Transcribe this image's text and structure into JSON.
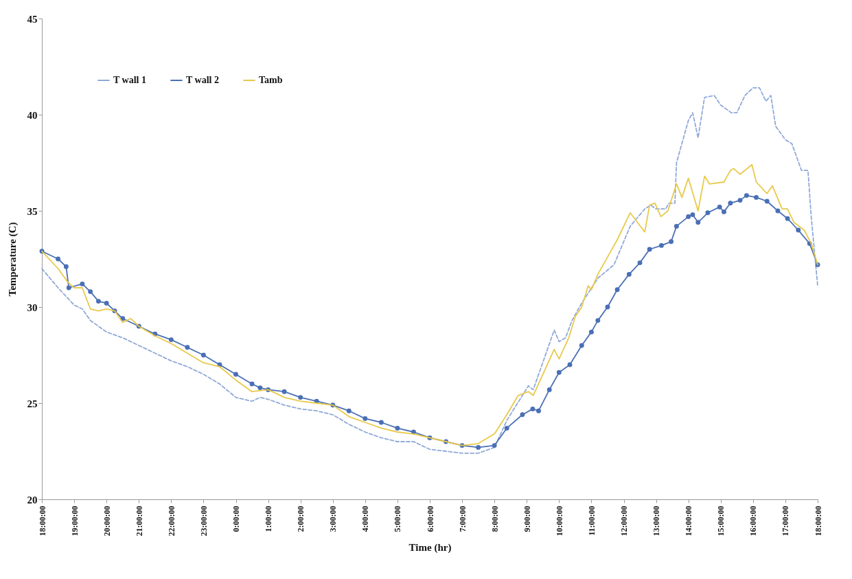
{
  "chart_data": {
    "type": "line",
    "xlabel": "Time (hr)",
    "ylabel": "Temperature (C)",
    "xlim": [
      "--01-01T18:00",
      "--01-02T18:00"
    ],
    "ylim": [
      20,
      45
    ],
    "yticks": [
      20,
      25,
      30,
      35,
      40,
      45
    ],
    "xticks": [
      {
        "value": "--01-01T18:00",
        "label": "18:00:00"
      },
      {
        "value": "--01-01T19:00",
        "label": "19:00:00"
      },
      {
        "value": "--01-01T20:00",
        "label": "20:00:00"
      },
      {
        "value": "--01-01T21:00",
        "label": "21:00:00"
      },
      {
        "value": "--01-01T22:00",
        "label": "22:00:00"
      },
      {
        "value": "--01-01T23:00",
        "label": "23:00:00"
      },
      {
        "value": "--01-02T00:00",
        "label": "0:00:00"
      },
      {
        "value": "--01-02T01:00",
        "label": "1:00:00"
      },
      {
        "value": "--01-02T02:00",
        "label": "2:00:00"
      },
      {
        "value": "--01-02T03:00",
        "label": "3:00:00"
      },
      {
        "value": "--01-02T04:00",
        "label": "4:00:00"
      },
      {
        "value": "--01-02T05:00",
        "label": "5:00:00"
      },
      {
        "value": "--01-02T06:00",
        "label": "6:00:00"
      },
      {
        "value": "--01-02T07:00",
        "label": "7:00:00"
      },
      {
        "value": "--01-02T08:00",
        "label": "8:00:00"
      },
      {
        "value": "--01-02T09:00",
        "label": "9:00:00"
      },
      {
        "value": "--01-02T10:00",
        "label": "10:00:00"
      },
      {
        "value": "--01-02T11:00",
        "label": "11:00:00"
      },
      {
        "value": "--01-02T12:00",
        "label": "12:00:00"
      },
      {
        "value": "--01-02T13:00",
        "label": "13:00:00"
      },
      {
        "value": "--01-02T14:00",
        "label": "14:00:00"
      },
      {
        "value": "--01-02T15:00",
        "label": "15:00:00"
      },
      {
        "value": "--01-02T16:00",
        "label": "16:00:00"
      },
      {
        "value": "--01-02T17:00",
        "label": "17:00:00"
      },
      {
        "value": "--01-02T18:00",
        "label": "18:00:00"
      }
    ],
    "grid": false,
    "legend": "top left",
    "series": [
      {
        "name": "T wall 1",
        "color": "#8fa8d8",
        "line_style": "dashed",
        "marker": "none",
        "x": [
          "--01-01T18:00",
          "--01-01T18:30",
          "--01-01T19:00",
          "--01-01T19:15",
          "--01-01T19:30",
          "--01-01T20:00",
          "--01-01T20:30",
          "--01-01T21:00",
          "--01-01T21:30",
          "--01-01T22:00",
          "--01-01T22:30",
          "--01-01T23:00",
          "--01-01T23:30",
          "--01-02T00:00",
          "--01-02T00:30",
          "--01-02T00:45",
          "--01-02T01:00",
          "--01-02T01:30",
          "--01-02T02:00",
          "--01-02T02:30",
          "--01-02T03:00",
          "--01-02T03:30",
          "--01-02T04:00",
          "--01-02T04:30",
          "--01-02T05:00",
          "--01-02T05:30",
          "--01-02T06:00",
          "--01-02T06:30",
          "--01-02T07:00",
          "--01-02T07:30",
          "--01-02T08:00",
          "--01-02T08:23",
          "--01-02T09:03",
          "--01-02T09:12",
          "--01-02T09:51",
          "--01-02T10:00",
          "--01-02T10:12",
          "--01-02T10:24",
          "--01-02T10:42",
          "--01-02T11:12",
          "--01-02T11:42",
          "--01-02T12:12",
          "--01-02T12:18",
          "--01-02T12:39",
          "--01-02T12:50",
          "--01-02T13:00",
          "--01-02T13:18",
          "--01-02T13:24",
          "--01-02T13:35",
          "--01-02T13:38",
          "--01-02T14:00",
          "--01-02T14:08",
          "--01-02T14:18",
          "--01-02T14:30",
          "--01-02T14:48",
          "--01-02T15:00",
          "--01-02T15:20",
          "--01-02T15:30",
          "--01-02T15:45",
          "--01-02T16:00",
          "--01-02T16:12",
          "--01-02T16:24",
          "--01-02T16:33",
          "--01-02T16:42",
          "--01-02T17:00",
          "--01-02T17:12",
          "--01-02T17:30",
          "--01-02T17:42",
          "--01-02T17:48",
          "--01-02T18:00"
        ],
        "values": [
          32.0,
          31.0,
          30.1,
          29.9,
          29.3,
          28.7,
          28.4,
          28.0,
          27.6,
          27.2,
          26.9,
          26.5,
          26.0,
          25.3,
          25.1,
          25.3,
          25.2,
          24.9,
          24.7,
          24.6,
          24.4,
          23.9,
          23.5,
          23.2,
          23.0,
          23.0,
          22.6,
          22.5,
          22.4,
          22.4,
          22.7,
          24.1,
          25.9,
          25.7,
          28.8,
          28.2,
          28.4,
          29.3,
          30.2,
          31.5,
          32.2,
          34.2,
          34.4,
          35.1,
          35.3,
          35.1,
          35.1,
          35.4,
          35.4,
          37.5,
          39.7,
          40.1,
          38.8,
          40.9,
          41.0,
          40.5,
          40.1,
          40.1,
          41.0,
          41.4,
          41.4,
          40.7,
          41.0,
          39.4,
          38.7,
          38.5,
          37.1,
          37.1,
          34.7,
          31.1
        ]
      },
      {
        "name": "T wall 2",
        "color": "#4a6fb5",
        "line_style": "solid",
        "marker": "circle",
        "x": [
          "--01-01T18:00",
          "--01-01T18:30",
          "--01-01T18:45",
          "--01-01T18:50",
          "--01-01T19:15",
          "--01-01T19:30",
          "--01-01T19:45",
          "--01-01T20:00",
          "--01-01T20:15",
          "--01-01T20:30",
          "--01-01T21:00",
          "--01-01T21:30",
          "--01-01T22:00",
          "--01-01T22:30",
          "--01-01T23:00",
          "--01-01T23:30",
          "--01-02T00:00",
          "--01-02T00:30",
          "--01-02T00:45",
          "--01-02T01:00",
          "--01-02T01:30",
          "--01-02T02:00",
          "--01-02T02:30",
          "--01-02T03:00",
          "--01-02T03:30",
          "--01-02T04:00",
          "--01-02T04:30",
          "--01-02T05:00",
          "--01-02T05:30",
          "--01-02T06:00",
          "--01-02T06:30",
          "--01-02T07:00",
          "--01-02T07:30",
          "--01-02T08:00",
          "--01-02T08:23",
          "--01-02T08:52",
          "--01-02T09:11",
          "--01-02T09:22",
          "--01-02T09:42",
          "--01-02T10:00",
          "--01-02T10:20",
          "--01-02T10:42",
          "--01-02T11:00",
          "--01-02T11:12",
          "--01-02T11:30",
          "--01-02T11:48",
          "--01-02T12:10",
          "--01-02T12:30",
          "--01-02T12:48",
          "--01-02T13:10",
          "--01-02T13:28",
          "--01-02T13:38",
          "--01-02T14:00",
          "--01-02T14:08",
          "--01-02T14:18",
          "--01-02T14:36",
          "--01-02T14:58",
          "--01-02T15:06",
          "--01-02T15:18",
          "--01-02T15:36",
          "--01-02T15:48",
          "--01-02T16:06",
          "--01-02T16:26",
          "--01-02T16:46",
          "--01-02T17:04",
          "--01-02T17:24",
          "--01-02T17:45",
          "--01-02T18:00"
        ],
        "values": [
          32.9,
          32.5,
          32.1,
          31.0,
          31.2,
          30.8,
          30.3,
          30.2,
          29.8,
          29.4,
          29.0,
          28.6,
          28.3,
          27.9,
          27.5,
          27.0,
          26.5,
          26.0,
          25.8,
          25.7,
          25.6,
          25.3,
          25.1,
          24.9,
          24.6,
          24.2,
          24.0,
          23.7,
          23.5,
          23.2,
          23.0,
          22.8,
          22.7,
          22.8,
          23.7,
          24.4,
          24.7,
          24.6,
          25.7,
          26.6,
          27.0,
          28.0,
          28.7,
          29.3,
          30.0,
          30.9,
          31.7,
          32.3,
          33.0,
          33.2,
          33.4,
          34.2,
          34.7,
          34.8,
          34.4,
          34.9,
          35.2,
          34.95,
          35.4,
          35.55,
          35.8,
          35.7,
          35.5,
          35.0,
          34.6,
          34.0,
          33.3,
          32.2
        ]
      },
      {
        "name": "Tamb",
        "color": "#e8c94a",
        "line_style": "solid",
        "marker": "none",
        "x": [
          "--01-01T18:00",
          "--01-01T18:30",
          "--01-01T18:48",
          "--01-01T19:00",
          "--01-01T19:15",
          "--01-01T19:30",
          "--01-01T19:45",
          "--01-01T20:00",
          "--01-01T20:15",
          "--01-01T20:30",
          "--01-01T20:45",
          "--01-01T21:00",
          "--01-01T21:30",
          "--01-01T22:00",
          "--01-01T22:30",
          "--01-01T23:00",
          "--01-01T23:30",
          "--01-02T00:00",
          "--01-02T00:30",
          "--01-02T01:00",
          "--01-02T01:30",
          "--01-02T02:00",
          "--01-02T02:30",
          "--01-02T03:00",
          "--01-02T03:30",
          "--01-02T04:00",
          "--01-02T04:30",
          "--01-02T05:00",
          "--01-02T05:30",
          "--01-02T06:00",
          "--01-02T06:30",
          "--01-02T07:00",
          "--01-02T07:30",
          "--01-02T08:00",
          "--01-02T08:23",
          "--01-02T08:44",
          "--01-02T09:03",
          "--01-02T09:12",
          "--01-02T09:51",
          "--01-02T10:00",
          "--01-02T10:18",
          "--01-02T10:30",
          "--01-02T10:42",
          "--01-02T10:54",
          "--01-02T11:00",
          "--01-02T11:12",
          "--01-02T11:42",
          "--01-02T11:48",
          "--01-02T12:12",
          "--01-02T12:39",
          "--01-02T12:48",
          "--01-02T12:58",
          "--01-02T13:09",
          "--01-02T13:22",
          "--01-02T13:38",
          "--01-02T13:48",
          "--01-02T14:00",
          "--01-02T14:18",
          "--01-02T14:30",
          "--01-02T14:39",
          "--01-02T15:06",
          "--01-02T15:18",
          "--01-02T15:24",
          "--01-02T15:36",
          "--01-02T15:58",
          "--01-02T16:06",
          "--01-02T16:26",
          "--01-02T16:36",
          "--01-02T16:54",
          "--01-02T17:04",
          "--01-02T17:16",
          "--01-02T17:35",
          "--01-02T17:48",
          "--01-02T18:00"
        ],
        "values": [
          32.9,
          32.0,
          31.3,
          31.0,
          31.0,
          29.9,
          29.8,
          29.9,
          29.8,
          29.2,
          29.4,
          29.0,
          28.5,
          28.1,
          27.6,
          27.1,
          26.9,
          26.2,
          25.6,
          25.7,
          25.3,
          25.1,
          25.0,
          24.9,
          24.3,
          24.0,
          23.7,
          23.5,
          23.4,
          23.2,
          23.0,
          22.8,
          22.9,
          23.4,
          24.4,
          25.4,
          25.6,
          25.4,
          27.8,
          27.3,
          28.4,
          29.5,
          30.0,
          31.1,
          30.9,
          31.7,
          33.2,
          33.5,
          34.9,
          33.9,
          35.3,
          35.4,
          34.7,
          35.0,
          36.4,
          35.7,
          36.7,
          35.0,
          36.8,
          36.4,
          36.5,
          37.1,
          37.2,
          36.9,
          37.4,
          36.5,
          35.9,
          36.3,
          35.1,
          35.1,
          34.4,
          34.0,
          33.3,
          32.2
        ]
      }
    ]
  }
}
